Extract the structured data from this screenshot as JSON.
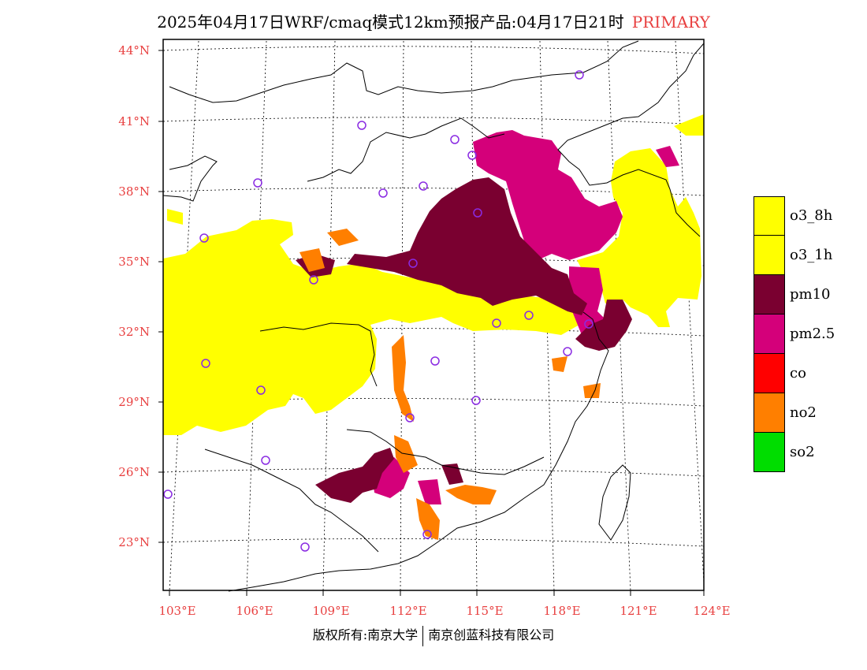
{
  "title": {
    "main": "2025年04月17日WRF/cmaq模式12km预报产品:04月17日21时",
    "tag": "PRIMARY",
    "tag_color": "#e84040"
  },
  "lat_labels": [
    "44°N",
    "41°N",
    "38°N",
    "35°N",
    "32°N",
    "29°N",
    "26°N",
    "23°N"
  ],
  "lon_labels": [
    "103°E",
    "106°E",
    "109°E",
    "112°E",
    "115°E",
    "118°E",
    "121°E",
    "124°E"
  ],
  "legend": [
    {
      "label": "o3_8h",
      "color": "#ffff00"
    },
    {
      "label": "o3_1h",
      "color": "#ffff00"
    },
    {
      "label": "pm10",
      "color": "#7a0030"
    },
    {
      "label": "pm2.5",
      "color": "#d4007a"
    },
    {
      "label": "co",
      "color": "#ff0000"
    },
    {
      "label": "no2",
      "color": "#ff7f00"
    },
    {
      "label": "so2",
      "color": "#00dd00"
    }
  ],
  "footer": {
    "left": "版权所有:南京大学",
    "right": "南京创蓝科技有限公司"
  },
  "map_colors": {
    "o3": "#ffff00",
    "pm10": "#7a0030",
    "pm25": "#d4007a",
    "no2": "#ff7f00",
    "station": "#8a2be2"
  }
}
